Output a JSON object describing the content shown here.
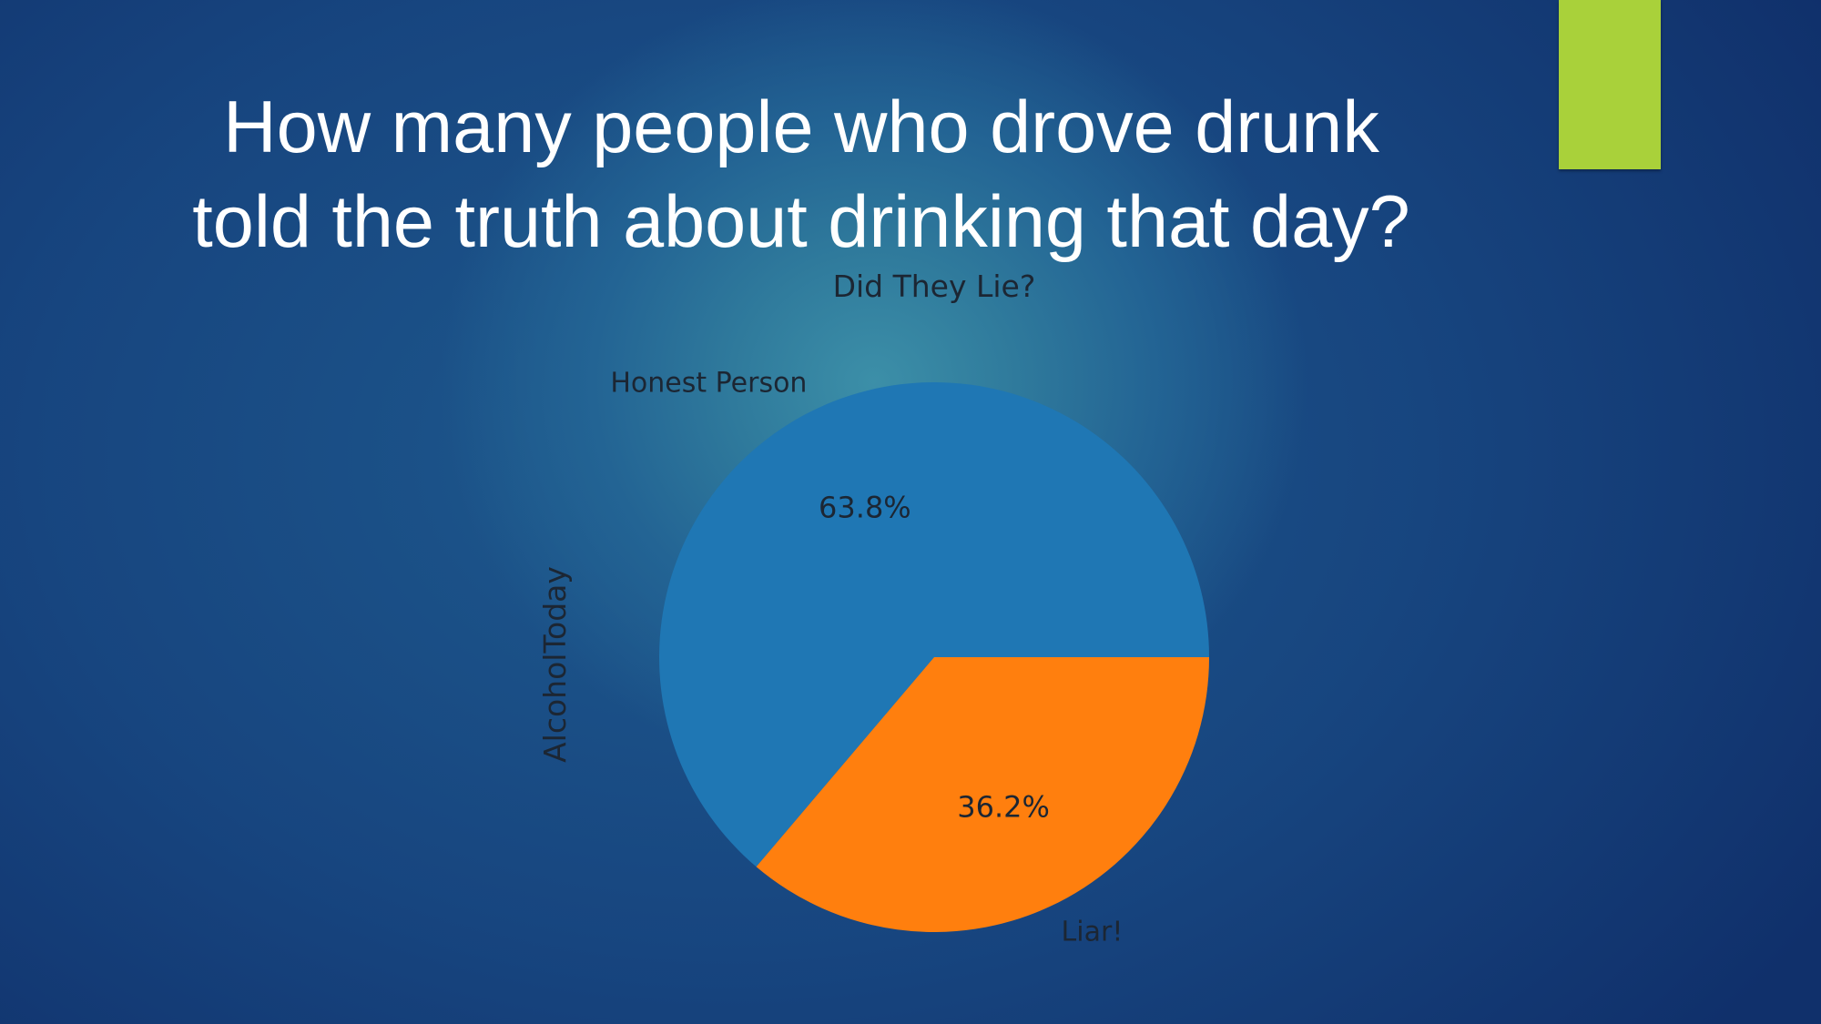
{
  "slide": {
    "title_line1": "How many people who drove drunk",
    "title_line2": "told the truth about drinking that day?",
    "accent_color": "#a9d13a"
  },
  "chart_data": {
    "type": "pie",
    "title": "Did They Lie?",
    "ylabel": "AlcoholToday",
    "slices": [
      {
        "label": "Honest Person",
        "value": 63.8,
        "pct_label": "63.8%",
        "color": "#1f77b4"
      },
      {
        "label": "Liar!",
        "value": 36.2,
        "pct_label": "36.2%",
        "color": "#ff7f0e"
      }
    ],
    "start_angle_deg": 0,
    "direction": "counterclockwise"
  }
}
